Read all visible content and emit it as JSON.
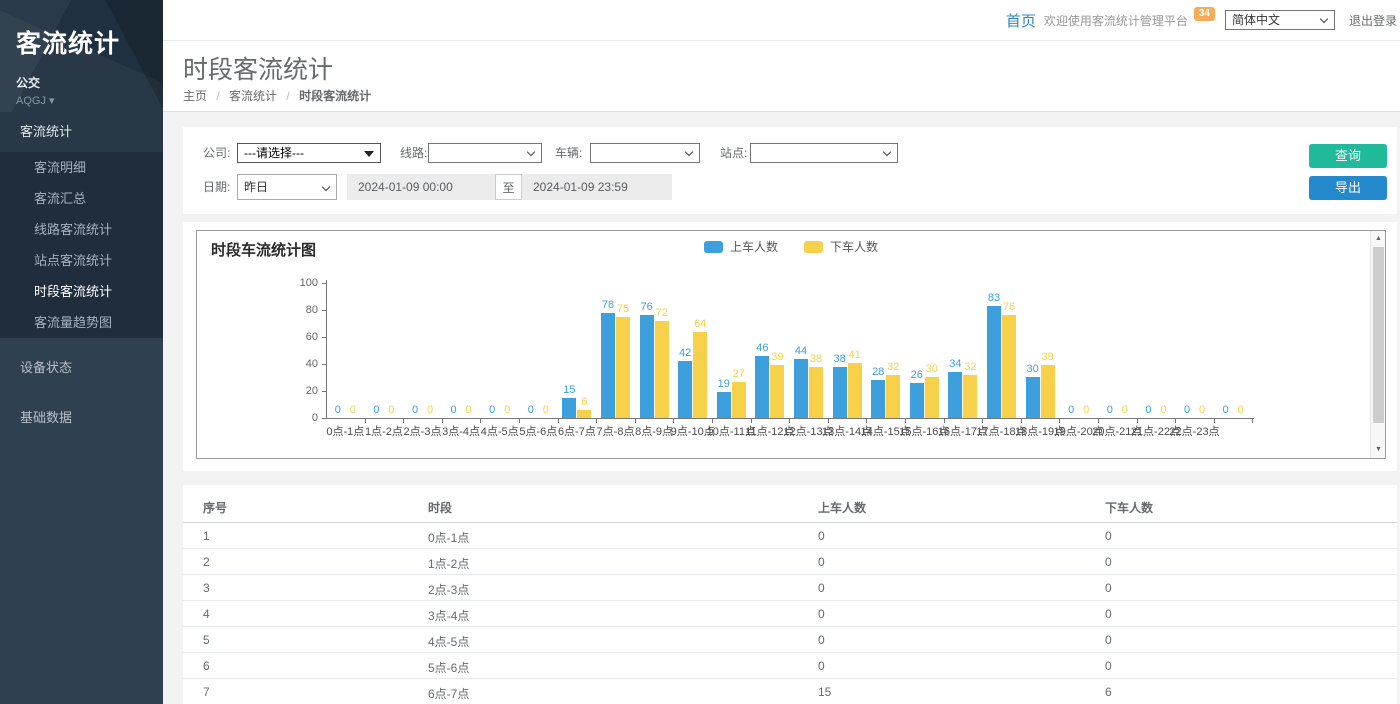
{
  "colors": {
    "button_green": "#20b999",
    "button_blue": "#2488cc",
    "badge_orange": "#f8ac59",
    "series_blue": "#3da0dc",
    "series_yellow": "#f8d14b",
    "sidebar_bg": "#2f4050"
  },
  "icons": {
    "caret_down": "▾",
    "scroll_up": "▲",
    "scroll_down": "▼"
  },
  "sidebar": {
    "logo": "客流统计",
    "org_label": "公交",
    "org_code": "AQGJ",
    "menu": [
      {
        "id": "passenger-stats",
        "label": "客流统计",
        "level": 1,
        "open": true
      },
      {
        "id": "passenger-detail",
        "label": "客流明细",
        "level": 2
      },
      {
        "id": "passenger-summary",
        "label": "客流汇总",
        "level": 2
      },
      {
        "id": "line-stats",
        "label": "线路客流统计",
        "level": 2
      },
      {
        "id": "station-stats",
        "label": "站点客流统计",
        "level": 2
      },
      {
        "id": "period-stats",
        "label": "时段客流统计",
        "level": 2,
        "active": true
      },
      {
        "id": "flow-trend",
        "label": "客流量趋势图",
        "level": 2
      },
      {
        "id": "device-status",
        "label": "设备状态",
        "level": 1,
        "gap": true
      },
      {
        "id": "base-data",
        "label": "基础数据",
        "level": 1,
        "gap": true
      }
    ]
  },
  "topbar": {
    "home": "首页",
    "welcome": "欢迎使用客流统计管理平台",
    "badge": "34",
    "language": "简体中文",
    "logout": "退出登录"
  },
  "page": {
    "title": "时段客流统计",
    "breadcrumb": [
      "主页",
      "客流统计",
      "时段客流统计"
    ]
  },
  "filters": {
    "company_label": "公司:",
    "company_value": "---请选择---",
    "line_label": "线路:",
    "line_value": "",
    "vehicle_label": "车辆:",
    "vehicle_value": "",
    "station_label": "站点:",
    "station_value": "",
    "date_label": "日期:",
    "date_preset": "昨日",
    "date_start": "2024-01-09 00:00",
    "date_to": "至",
    "date_end": "2024-01-09 23:59",
    "query_button": "查询",
    "export_button": "导出"
  },
  "chart_data": {
    "type": "bar",
    "title": "时段车流统计图",
    "xlabel": "",
    "ylabel": "",
    "ylim": [
      0,
      100
    ],
    "yticks": [
      0,
      20,
      40,
      60,
      80,
      100
    ],
    "grid": false,
    "legend_position": "top-center",
    "categories": [
      "0点-1点",
      "1点-2点",
      "2点-3点",
      "3点-4点",
      "4点-5点",
      "5点-6点",
      "6点-7点",
      "7点-8点",
      "8点-9点",
      "9点-10点",
      "10点-11点",
      "11点-12点",
      "12点-13点",
      "13点-14点",
      "14点-15点",
      "15点-16点",
      "16点-17点",
      "17点-18点",
      "18点-19点",
      "19点-20点",
      "20点-21点",
      "21点-22点",
      "22点-23点",
      ""
    ],
    "series": [
      {
        "name": "上车人数",
        "color": "#3da0dc",
        "values": [
          0,
          0,
          0,
          0,
          0,
          0,
          15,
          78,
          76,
          42,
          19,
          46,
          44,
          38,
          28,
          26,
          34,
          83,
          30,
          0,
          0,
          0,
          0,
          0
        ]
      },
      {
        "name": "下车人数",
        "color": "#f8d14b",
        "values": [
          0,
          0,
          0,
          0,
          0,
          0,
          6,
          75,
          72,
          64,
          27,
          39,
          38,
          41,
          32,
          30,
          32,
          76,
          39,
          0,
          0,
          0,
          0,
          0
        ]
      }
    ]
  },
  "table": {
    "columns": [
      "序号",
      "时段",
      "上车人数",
      "下车人数"
    ],
    "rows": [
      [
        "1",
        "0点-1点",
        "0",
        "0"
      ],
      [
        "2",
        "1点-2点",
        "0",
        "0"
      ],
      [
        "3",
        "2点-3点",
        "0",
        "0"
      ],
      [
        "4",
        "3点-4点",
        "0",
        "0"
      ],
      [
        "5",
        "4点-5点",
        "0",
        "0"
      ],
      [
        "6",
        "5点-6点",
        "0",
        "0"
      ],
      [
        "7",
        "6点-7点",
        "15",
        "6"
      ]
    ]
  }
}
